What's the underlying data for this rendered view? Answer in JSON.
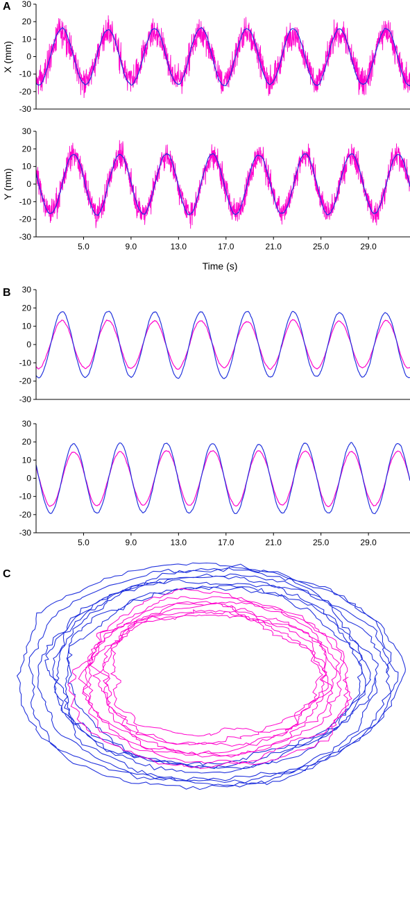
{
  "colors": {
    "measured": "#ff00cc",
    "smoothed": "#2233dd",
    "axis": "#000000"
  },
  "panels": {
    "a": "A",
    "b": "B",
    "c": "C"
  },
  "chart_data": [
    {
      "id": "A-X",
      "type": "line",
      "panel": "A",
      "ylabel": "X (mm)",
      "xlabel": "",
      "ylim": [
        -30,
        30
      ],
      "yticks": [
        30,
        20,
        10,
        0,
        -10,
        -20,
        -30
      ],
      "xlim": [
        1.0,
        32.5
      ],
      "xticks": [],
      "period_s": 3.9,
      "series": [
        {
          "style": "noisy",
          "color_key": "measured",
          "amplitude_mm": 14,
          "phase_s": 2.2,
          "noise_mm": 9
        },
        {
          "style": "smooth",
          "color_key": "smoothed",
          "amplitude_mm": 16,
          "phase_s": 2.2,
          "noise_mm": 1.5
        }
      ]
    },
    {
      "id": "A-Y",
      "type": "line",
      "panel": "A",
      "ylabel": "Y (mm)",
      "xlabel": "Time (s)",
      "ylim": [
        -30,
        30
      ],
      "yticks": [
        30,
        20,
        10,
        0,
        -10,
        -20,
        -30
      ],
      "xlim": [
        1.0,
        32.5
      ],
      "xticks": [
        "5.0",
        "9.0",
        "13.0",
        "17.0",
        "21.0",
        "25.0",
        "29.0"
      ],
      "period_s": 3.9,
      "series": [
        {
          "style": "noisy",
          "color_key": "measured",
          "amplitude_mm": 16,
          "phase_s": 3.2,
          "noise_mm": 8
        },
        {
          "style": "smooth",
          "color_key": "smoothed",
          "amplitude_mm": 17,
          "phase_s": 3.2,
          "noise_mm": 1.5
        }
      ]
    },
    {
      "id": "B-X",
      "type": "line",
      "panel": "B",
      "ylabel": "",
      "xlabel": "",
      "ylim": [
        -30,
        30
      ],
      "yticks": [
        30,
        20,
        10,
        0,
        -10,
        -20,
        -30
      ],
      "xlim": [
        1.0,
        32.5
      ],
      "xticks": [],
      "period_s": 3.9,
      "series": [
        {
          "style": "smooth",
          "color_key": "measured",
          "amplitude_mm": 13,
          "phase_s": 2.2,
          "noise_mm": 1.2
        },
        {
          "style": "smooth",
          "color_key": "smoothed",
          "amplitude_mm": 18,
          "phase_s": 2.2,
          "noise_mm": 1.2
        }
      ]
    },
    {
      "id": "B-Y",
      "type": "line",
      "panel": "B",
      "ylabel": "",
      "xlabel": "",
      "ylim": [
        -30,
        30
      ],
      "yticks": [
        30,
        20,
        10,
        0,
        -10,
        -20,
        -30
      ],
      "xlim": [
        1.0,
        32.5
      ],
      "xticks": [
        "5.0",
        "9.0",
        "13.0",
        "17.0",
        "21.0",
        "25.0",
        "29.0"
      ],
      "period_s": 3.9,
      "series": [
        {
          "style": "smooth",
          "color_key": "measured",
          "amplitude_mm": 15,
          "phase_s": 3.2,
          "noise_mm": 1.2
        },
        {
          "style": "smooth",
          "color_key": "smoothed",
          "amplitude_mm": 19,
          "phase_s": 3.2,
          "noise_mm": 1.2
        }
      ]
    },
    {
      "id": "C-XY",
      "type": "line",
      "panel": "C",
      "title": "",
      "xlabel": "",
      "ylabel": "",
      "axes": "none",
      "loops": 8,
      "series": [
        {
          "style": "trajectory",
          "color_key": "smoothed",
          "radius_mm": 19,
          "jitter_mm": 3
        },
        {
          "style": "trajectory",
          "color_key": "measured",
          "radius_mm": 14,
          "jitter_mm": 4
        }
      ]
    }
  ]
}
